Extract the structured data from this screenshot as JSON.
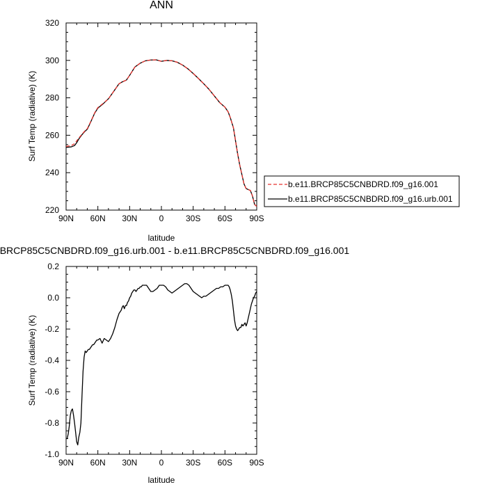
{
  "chart_data": [
    {
      "type": "line",
      "title": "ANN",
      "xlabel": "latitude",
      "ylabel": "Surf Temp (radiative) (K)",
      "xlim": [
        90,
        -90
      ],
      "ylim": [
        220,
        320
      ],
      "x_ticks": [
        "90N",
        "60N",
        "30N",
        "0",
        "30S",
        "60S",
        "90S"
      ],
      "y_ticks": [
        "220",
        "240",
        "260",
        "280",
        "300",
        "320"
      ],
      "grid": false,
      "legend_position": "right",
      "series": [
        {
          "name": "b.e11.BRCP85C5CNBDRD.f09_g16.001",
          "color": "#e8322d",
          "dash": "dashed",
          "x": [
            90,
            85,
            82,
            80,
            78,
            75,
            72,
            70,
            67,
            63,
            60,
            55,
            50,
            45,
            40,
            37,
            33,
            30,
            25,
            20,
            15,
            10,
            5,
            0,
            -5,
            -10,
            -15,
            -20,
            -25,
            -30,
            -35,
            -40,
            -45,
            -50,
            -55,
            -60,
            -63,
            -65,
            -68,
            -70,
            -72,
            -74,
            -76,
            -78,
            -80,
            -82,
            -84,
            -86,
            -88,
            -90
          ],
          "y": [
            254,
            254.5,
            255.5,
            257,
            258.5,
            260.5,
            262.5,
            263.5,
            267,
            272,
            274.8,
            277,
            279.5,
            283.5,
            287.5,
            288.5,
            289.5,
            292,
            296.5,
            298.5,
            299.8,
            300.2,
            300.3,
            299.5,
            300,
            299.8,
            299,
            297.5,
            295.5,
            293,
            290.3,
            287.5,
            284.5,
            281,
            277.5,
            275,
            272.5,
            269.5,
            264,
            257,
            250,
            244,
            239,
            234,
            231.5,
            231,
            230.5,
            227.5,
            223,
            222
          ]
        },
        {
          "name": "b.e11.BRCP85C5CNBDRD.f09_g16.urb.001",
          "color": "#000000",
          "dash": "solid",
          "x": [
            90,
            85,
            82,
            80,
            78,
            75,
            72,
            70,
            67,
            63,
            60,
            55,
            50,
            45,
            40,
            37,
            33,
            30,
            25,
            20,
            15,
            10,
            5,
            0,
            -5,
            -10,
            -15,
            -20,
            -25,
            -30,
            -35,
            -40,
            -45,
            -50,
            -55,
            -60,
            -63,
            -65,
            -68,
            -70,
            -72,
            -74,
            -76,
            -78,
            -80,
            -82,
            -84,
            -86,
            -88,
            -90
          ],
          "y": [
            253.5,
            253.8,
            254.5,
            256,
            258,
            260.3,
            262.2,
            263.2,
            266.8,
            271.8,
            274.5,
            276.8,
            279.5,
            283.5,
            287.5,
            288.5,
            289.5,
            292,
            296.5,
            298.5,
            299.8,
            300.2,
            300.3,
            299.5,
            300,
            299.8,
            299,
            297.5,
            295.5,
            293,
            290.3,
            287.5,
            284.5,
            281,
            277.5,
            275,
            272.5,
            269.5,
            264,
            257,
            250,
            244,
            239,
            234,
            231.5,
            231,
            230.5,
            227.5,
            223,
            222
          ]
        }
      ]
    },
    {
      "type": "line",
      "title": "b.e11.BRCP85C5CNBDRD.f09_g16.urb.001 - b.e11.BRCP85C5CNBDRD.f09_g16.001",
      "xlabel": "latitude",
      "ylabel": "Surf Temp (radiative) (K)",
      "xlim": [
        90,
        -90
      ],
      "ylim": [
        -1.0,
        0.2
      ],
      "x_ticks": [
        "90N",
        "60N",
        "30N",
        "0",
        "30S",
        "60S",
        "90S"
      ],
      "y_ticks": [
        "-1.0",
        "-0.8",
        "-0.6",
        "-0.4",
        "-0.2",
        "0.0",
        "0.2"
      ],
      "grid": false,
      "series": [
        {
          "color": "#000000",
          "dash": "solid",
          "x": [
            90,
            89,
            88,
            87,
            86,
            85,
            84,
            83,
            82,
            81,
            80,
            79,
            78,
            77,
            76,
            75,
            74,
            73,
            72,
            71,
            70,
            69,
            68,
            67,
            66,
            65,
            64,
            63,
            62,
            61,
            60,
            58,
            56,
            54,
            52,
            50,
            48,
            46,
            44,
            42,
            40,
            38,
            37,
            36,
            35,
            34,
            33,
            32,
            31,
            30,
            29,
            28,
            27,
            26,
            25,
            24,
            23,
            22,
            21,
            20,
            19,
            18,
            17,
            16,
            15,
            14,
            13,
            12,
            11,
            10,
            8,
            6,
            4,
            2,
            0,
            -2,
            -4,
            -6,
            -8,
            -10,
            -12,
            -14,
            -16,
            -18,
            -20,
            -22,
            -24,
            -26,
            -28,
            -30,
            -32,
            -34,
            -36,
            -38,
            -40,
            -42,
            -44,
            -46,
            -48,
            -50,
            -52,
            -54,
            -56,
            -58,
            -60,
            -62,
            -63,
            -64,
            -65,
            -66,
            -67,
            -68,
            -69,
            -70,
            -71,
            -72,
            -73,
            -74,
            -75,
            -76,
            -77,
            -78,
            -79,
            -80,
            -81,
            -82,
            -83,
            -84,
            -85,
            -86,
            -87,
            -88,
            -89,
            -90
          ],
          "y": [
            -0.9,
            -0.9,
            -0.87,
            -0.82,
            -0.75,
            -0.72,
            -0.71,
            -0.75,
            -0.8,
            -0.86,
            -0.92,
            -0.94,
            -0.89,
            -0.86,
            -0.8,
            -0.63,
            -0.47,
            -0.38,
            -0.34,
            -0.35,
            -0.34,
            -0.33,
            -0.33,
            -0.32,
            -0.31,
            -0.3,
            -0.3,
            -0.29,
            -0.28,
            -0.27,
            -0.27,
            -0.26,
            -0.29,
            -0.26,
            -0.27,
            -0.28,
            -0.26,
            -0.23,
            -0.19,
            -0.14,
            -0.1,
            -0.08,
            -0.06,
            -0.05,
            -0.07,
            -0.05,
            -0.05,
            -0.03,
            -0.02,
            0.0,
            0.01,
            0.03,
            0.04,
            0.05,
            0.05,
            0.04,
            0.05,
            0.06,
            0.06,
            0.07,
            0.07,
            0.08,
            0.08,
            0.08,
            0.08,
            0.08,
            0.07,
            0.06,
            0.05,
            0.04,
            0.04,
            0.05,
            0.06,
            0.08,
            0.08,
            0.08,
            0.07,
            0.05,
            0.04,
            0.03,
            0.04,
            0.05,
            0.06,
            0.07,
            0.08,
            0.09,
            0.09,
            0.08,
            0.06,
            0.04,
            0.03,
            0.02,
            0.01,
            0.0,
            0.01,
            0.01,
            0.02,
            0.03,
            0.04,
            0.05,
            0.06,
            0.06,
            0.07,
            0.07,
            0.08,
            0.08,
            0.08,
            0.07,
            0.05,
            0.02,
            -0.02,
            -0.08,
            -0.14,
            -0.18,
            -0.2,
            -0.21,
            -0.2,
            -0.19,
            -0.19,
            -0.17,
            -0.18,
            -0.17,
            -0.16,
            -0.18,
            -0.16,
            -0.13,
            -0.1,
            -0.07,
            -0.04,
            -0.02,
            0.0,
            0.01,
            0.03,
            0.04
          ]
        }
      ]
    }
  ]
}
